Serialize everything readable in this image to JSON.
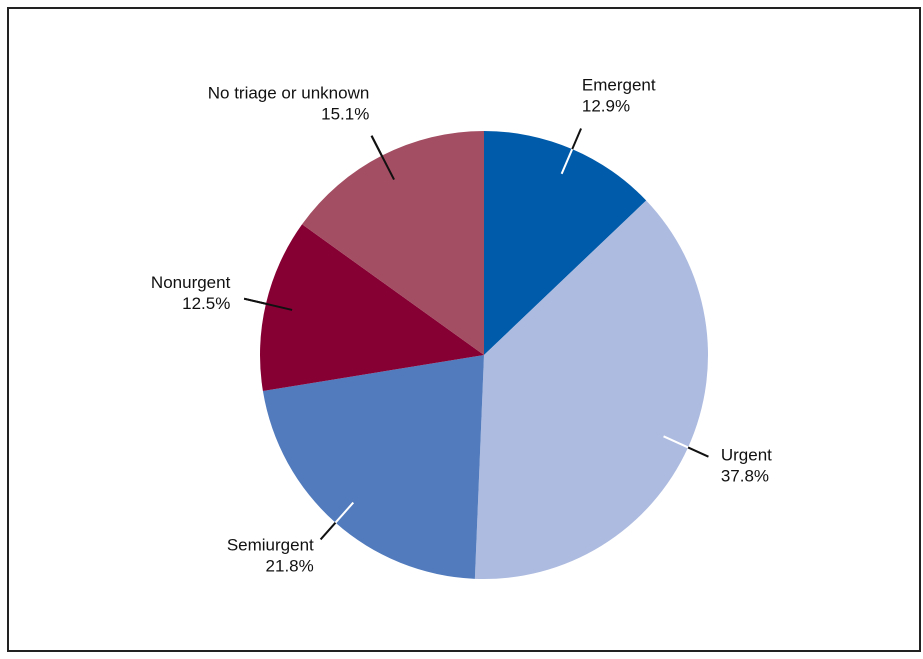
{
  "chart_data": {
    "type": "pie",
    "categories": [
      "Emergent",
      "Urgent",
      "Semiurgent",
      "Nonurgent",
      "No triage or unknown"
    ],
    "values": [
      12.9,
      37.8,
      21.8,
      12.5,
      15.1
    ],
    "value_labels": [
      "12.9%",
      "37.8%",
      "21.8%",
      "12.5%",
      "15.1%"
    ],
    "colors": [
      "#005baa",
      "#adbbe0",
      "#517bbd",
      "#870034",
      "#a34e62"
    ]
  }
}
